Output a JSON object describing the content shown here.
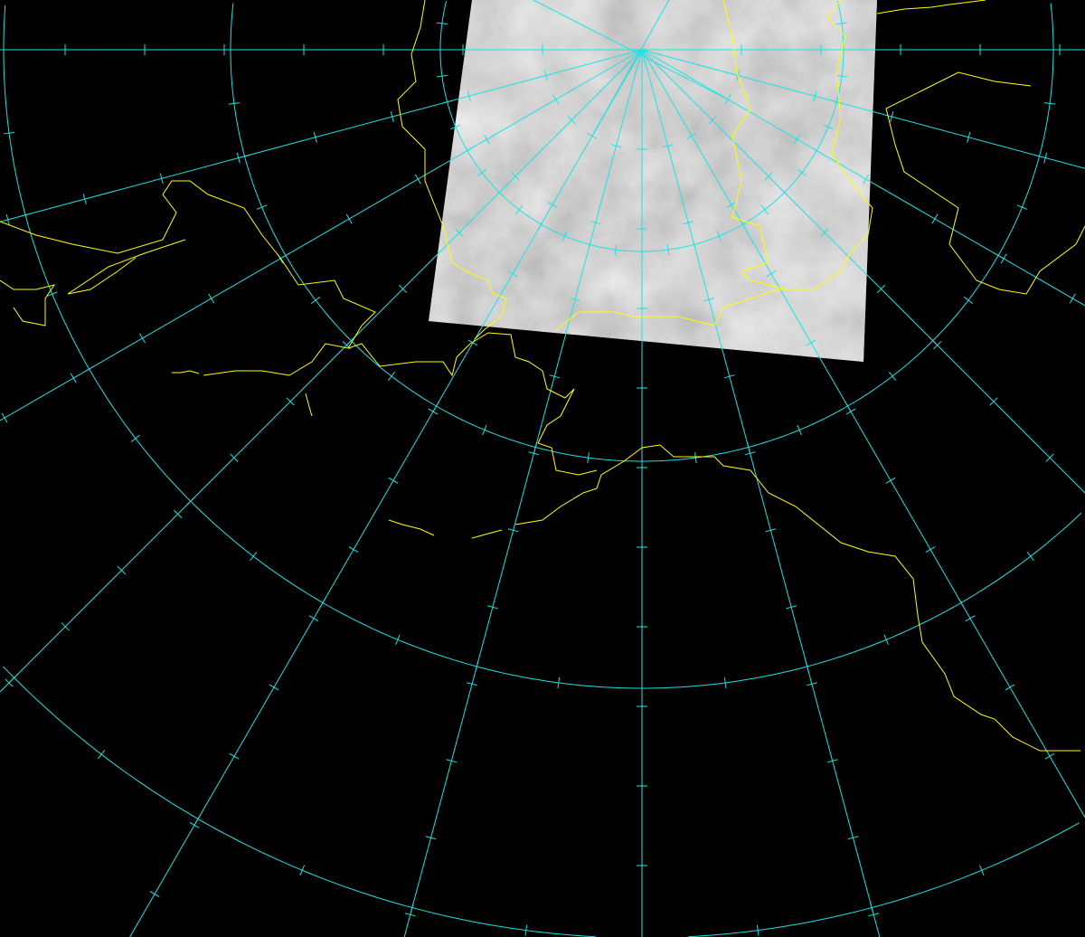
{
  "map": {
    "type": "polar satellite image with lat/lon graticule and coastline overlay",
    "colors": {
      "background": "#000000",
      "graticule": "#19e3e3",
      "coastline": "#ffff00",
      "imagery": "#9a9a9a"
    },
    "graticule": {
      "meridian_spacing_deg": 15
    }
  }
}
